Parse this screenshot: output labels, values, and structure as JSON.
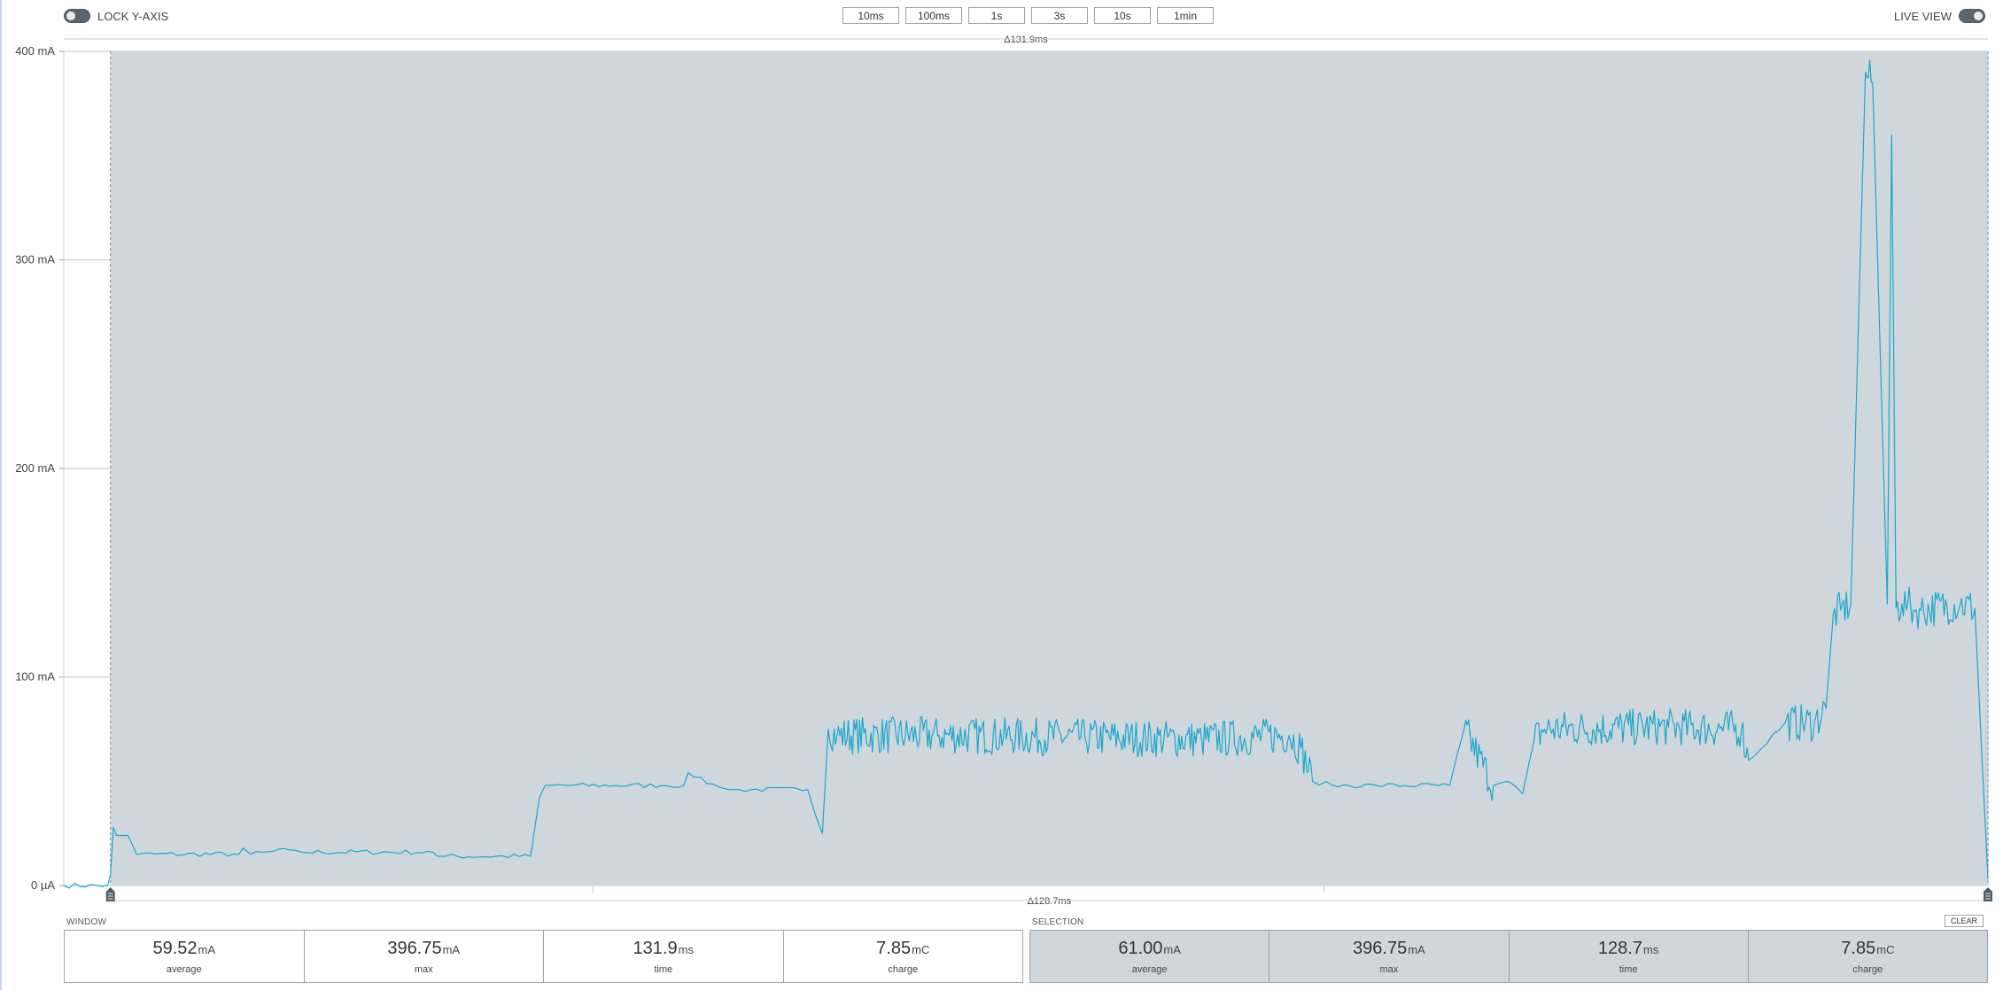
{
  "header": {
    "lock_y_axis": {
      "label": "LOCK Y-AXIS",
      "on": false
    },
    "live_view": {
      "label": "LIVE VIEW",
      "on": true
    },
    "zoom_buttons": [
      "10ms",
      "100ms",
      "1s",
      "3s",
      "10s",
      "1min"
    ]
  },
  "chart": {
    "y_ticks": [
      "400 mA",
      "300 mA",
      "200 mA",
      "100 mA",
      "0 µA"
    ],
    "delta_top": "Δ131.9ms",
    "delta_bottom": "Δ128.7ms"
  },
  "chart_data": {
    "type": "line",
    "title": "",
    "xlabel": "",
    "ylabel": "",
    "ylim": [
      0,
      400
    ],
    "grid": true,
    "x_unit": "ms",
    "x_range": [
      0,
      131.9
    ],
    "selection_range": [
      3.2,
      131.9
    ],
    "series": [
      {
        "color": "#1aa7cc",
        "x": [
          0,
          3.0,
          3.2,
          3.4,
          3.6,
          4.0,
          4.4,
          5.0,
          5.1,
          12.0,
          12.3,
          12.8,
          15.5,
          15.8,
          16.3,
          25.3,
          25.6,
          26.2,
          32.0,
          32.6,
          33.0,
          33.4,
          37.8,
          41.0,
          42.5,
          42.8,
          43.2,
          45.0,
          45.6,
          46.0,
          46.3,
          51.0,
          52.0,
          52.4,
          53.0,
          60.0,
          70.0,
          78.0,
          84.0,
          84.8,
          85.6,
          87.0,
          90.0,
          95.0,
          96.0,
          98.0,
          99.0,
          100.0,
          100.8,
          101.5,
          110.0,
          115.0,
          115.5,
          118.0,
          120.0,
          120.8,
          121.3,
          121.8,
          122.5,
          123.5,
          124.0,
          125.0,
          125.3,
          125.6,
          126.0,
          126.4,
          126.8,
          127.3,
          130.0,
          131.0,
          131.5,
          131.9
        ],
        "y": [
          0,
          0,
          5,
          28,
          24,
          24,
          24,
          15,
          15,
          15,
          18,
          15,
          17,
          17,
          16,
          16,
          14,
          14,
          14,
          42,
          48,
          48,
          48,
          48,
          48,
          54,
          52,
          47,
          46,
          46,
          46,
          46,
          25,
          75,
          72,
          72,
          71,
          70,
          72,
          66,
          50,
          48,
          48,
          48,
          75,
          48,
          50,
          44,
          70,
          75,
          76,
          75,
          60,
          78,
          78,
          85,
          130,
          132,
          135,
          390,
          385,
          135,
          360,
          133,
          135,
          135,
          132,
          132,
          135,
          133,
          60,
          3
        ]
      }
    ]
  },
  "stats": {
    "window": {
      "label": "WINDOW",
      "items": [
        {
          "value": "59.52",
          "unit": "mA",
          "name": "average"
        },
        {
          "value": "396.75",
          "unit": "mA",
          "name": "max"
        },
        {
          "value": "131.9",
          "unit": "ms",
          "name": "time"
        },
        {
          "value": "7.85",
          "unit": "mC",
          "name": "charge"
        }
      ]
    },
    "selection": {
      "label": "SELECTION",
      "clear_label": "CLEAR",
      "items": [
        {
          "value": "61.00",
          "unit": "mA",
          "name": "average"
        },
        {
          "value": "396.75",
          "unit": "mA",
          "name": "max"
        },
        {
          "value": "128.7",
          "unit": "ms",
          "name": "time"
        },
        {
          "value": "7.85",
          "unit": "mC",
          "name": "charge"
        }
      ]
    }
  },
  "colors": {
    "trace": "#1aa7cc",
    "selection_fill": "#cfd7dd",
    "grid": "#b9c3cb"
  }
}
